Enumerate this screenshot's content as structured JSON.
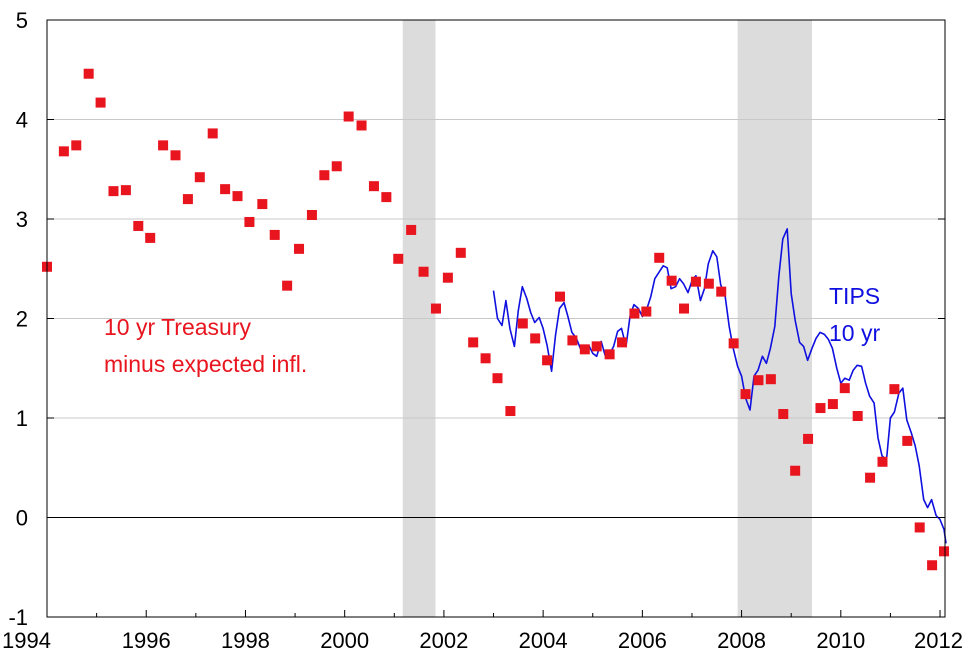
{
  "chart_data": {
    "type": "scatter",
    "xlim": [
      1994,
      2012.1
    ],
    "ylim": [
      -1,
      5
    ],
    "x_ticks": [
      "1994",
      "1996",
      "1998",
      "2000",
      "2002",
      "2004",
      "2006",
      "2008",
      "2010",
      "2012"
    ],
    "y_ticks": [
      "-1",
      "0",
      "1",
      "2",
      "3",
      "4",
      "5"
    ],
    "grid": "horizontal",
    "zero_line": true,
    "recessions": [
      [
        2001.17,
        2001.83
      ],
      [
        2007.92,
        2009.42
      ]
    ],
    "annotations": {
      "treasury_line1": "10 yr Treasury",
      "treasury_line2": "minus expected infl.",
      "tips_line1": "TIPS",
      "tips_line2": "10 yr"
    },
    "colors": {
      "treasury": "#e8141e",
      "tips": "#0f10e0",
      "recession": "#dcdcdc",
      "grid": "#c8c8c8"
    },
    "series": [
      {
        "key": "treasury",
        "style": "markers",
        "points": [
          [
            1994.0,
            2.52
          ],
          [
            1994.34,
            3.68
          ],
          [
            1994.59,
            3.74
          ],
          [
            1994.84,
            4.46
          ],
          [
            1995.08,
            4.17
          ],
          [
            1995.34,
            3.28
          ],
          [
            1995.59,
            3.29
          ],
          [
            1995.84,
            2.93
          ],
          [
            1996.08,
            2.81
          ],
          [
            1996.34,
            3.74
          ],
          [
            1996.59,
            3.64
          ],
          [
            1996.84,
            3.2
          ],
          [
            1997.08,
            3.42
          ],
          [
            1997.34,
            3.86
          ],
          [
            1997.59,
            3.3
          ],
          [
            1997.84,
            3.23
          ],
          [
            1998.08,
            2.97
          ],
          [
            1998.34,
            3.15
          ],
          [
            1998.59,
            2.84
          ],
          [
            1998.84,
            2.33
          ],
          [
            1999.08,
            2.7
          ],
          [
            1999.34,
            3.04
          ],
          [
            1999.59,
            3.44
          ],
          [
            1999.84,
            3.53
          ],
          [
            2000.08,
            4.03
          ],
          [
            2000.34,
            3.94
          ],
          [
            2000.59,
            3.33
          ],
          [
            2000.84,
            3.22
          ],
          [
            2001.08,
            2.6
          ],
          [
            2001.34,
            2.89
          ],
          [
            2001.59,
            2.47
          ],
          [
            2001.84,
            2.1
          ],
          [
            2002.08,
            2.41
          ],
          [
            2002.34,
            2.66
          ],
          [
            2002.59,
            1.76
          ],
          [
            2002.84,
            1.6
          ],
          [
            2003.08,
            1.4
          ],
          [
            2003.34,
            1.07
          ],
          [
            2003.59,
            1.95
          ],
          [
            2003.84,
            1.8
          ],
          [
            2004.08,
            1.58
          ],
          [
            2004.34,
            2.22
          ],
          [
            2004.59,
            1.78
          ],
          [
            2004.84,
            1.69
          ],
          [
            2005.08,
            1.72
          ],
          [
            2005.34,
            1.64
          ],
          [
            2005.59,
            1.76
          ],
          [
            2005.84,
            2.05
          ],
          [
            2006.08,
            2.07
          ],
          [
            2006.34,
            2.61
          ],
          [
            2006.59,
            2.38
          ],
          [
            2006.84,
            2.1
          ],
          [
            2007.08,
            2.37
          ],
          [
            2007.34,
            2.35
          ],
          [
            2007.59,
            2.27
          ],
          [
            2007.84,
            1.75
          ],
          [
            2008.08,
            1.24
          ],
          [
            2008.34,
            1.38
          ],
          [
            2008.59,
            1.39
          ],
          [
            2008.84,
            1.04
          ],
          [
            2009.08,
            0.47
          ],
          [
            2009.34,
            0.79
          ],
          [
            2009.59,
            1.1
          ],
          [
            2009.84,
            1.14
          ],
          [
            2010.08,
            1.3
          ],
          [
            2010.34,
            1.02
          ],
          [
            2010.59,
            0.4
          ],
          [
            2010.84,
            0.56
          ],
          [
            2011.08,
            1.29
          ],
          [
            2011.34,
            0.77
          ],
          [
            2011.59,
            -0.1
          ],
          [
            2011.84,
            -0.48
          ],
          [
            2012.08,
            -0.34
          ]
        ]
      },
      {
        "key": "tips",
        "style": "line",
        "points": [
          [
            2003.0,
            2.28
          ],
          [
            2003.08,
            2.0
          ],
          [
            2003.17,
            1.93
          ],
          [
            2003.25,
            2.18
          ],
          [
            2003.33,
            1.9
          ],
          [
            2003.42,
            1.72
          ],
          [
            2003.5,
            2.08
          ],
          [
            2003.58,
            2.32
          ],
          [
            2003.67,
            2.2
          ],
          [
            2003.75,
            2.06
          ],
          [
            2003.83,
            1.96
          ],
          [
            2003.92,
            2.01
          ],
          [
            2004.0,
            1.9
          ],
          [
            2004.08,
            1.73
          ],
          [
            2004.17,
            1.47
          ],
          [
            2004.25,
            1.83
          ],
          [
            2004.33,
            2.1
          ],
          [
            2004.42,
            2.16
          ],
          [
            2004.5,
            2.02
          ],
          [
            2004.58,
            1.86
          ],
          [
            2004.67,
            1.8
          ],
          [
            2004.75,
            1.7
          ],
          [
            2004.83,
            1.68
          ],
          [
            2004.92,
            1.73
          ],
          [
            2005.0,
            1.65
          ],
          [
            2005.08,
            1.62
          ],
          [
            2005.17,
            1.77
          ],
          [
            2005.25,
            1.63
          ],
          [
            2005.33,
            1.63
          ],
          [
            2005.42,
            1.72
          ],
          [
            2005.5,
            1.87
          ],
          [
            2005.58,
            1.9
          ],
          [
            2005.67,
            1.72
          ],
          [
            2005.75,
            2.02
          ],
          [
            2005.83,
            2.14
          ],
          [
            2005.92,
            2.1
          ],
          [
            2006.0,
            2.02
          ],
          [
            2006.08,
            2.08
          ],
          [
            2006.17,
            2.22
          ],
          [
            2006.25,
            2.4
          ],
          [
            2006.33,
            2.46
          ],
          [
            2006.42,
            2.53
          ],
          [
            2006.5,
            2.51
          ],
          [
            2006.58,
            2.3
          ],
          [
            2006.67,
            2.32
          ],
          [
            2006.75,
            2.4
          ],
          [
            2006.83,
            2.35
          ],
          [
            2006.92,
            2.26
          ],
          [
            2007.0,
            2.38
          ],
          [
            2007.08,
            2.43
          ],
          [
            2007.17,
            2.18
          ],
          [
            2007.25,
            2.3
          ],
          [
            2007.33,
            2.55
          ],
          [
            2007.42,
            2.68
          ],
          [
            2007.5,
            2.62
          ],
          [
            2007.58,
            2.34
          ],
          [
            2007.67,
            2.22
          ],
          [
            2007.75,
            1.92
          ],
          [
            2007.83,
            1.7
          ],
          [
            2007.92,
            1.52
          ],
          [
            2008.0,
            1.42
          ],
          [
            2008.08,
            1.2
          ],
          [
            2008.17,
            1.08
          ],
          [
            2008.25,
            1.42
          ],
          [
            2008.33,
            1.48
          ],
          [
            2008.42,
            1.62
          ],
          [
            2008.5,
            1.55
          ],
          [
            2008.58,
            1.7
          ],
          [
            2008.67,
            1.92
          ],
          [
            2008.75,
            2.42
          ],
          [
            2008.83,
            2.8
          ],
          [
            2008.92,
            2.9
          ],
          [
            2009.0,
            2.25
          ],
          [
            2009.08,
            1.98
          ],
          [
            2009.17,
            1.76
          ],
          [
            2009.25,
            1.72
          ],
          [
            2009.33,
            1.58
          ],
          [
            2009.42,
            1.7
          ],
          [
            2009.5,
            1.8
          ],
          [
            2009.58,
            1.86
          ],
          [
            2009.67,
            1.84
          ],
          [
            2009.75,
            1.79
          ],
          [
            2009.83,
            1.7
          ],
          [
            2009.92,
            1.5
          ],
          [
            2010.0,
            1.35
          ],
          [
            2010.08,
            1.4
          ],
          [
            2010.17,
            1.38
          ],
          [
            2010.25,
            1.48
          ],
          [
            2010.33,
            1.53
          ],
          [
            2010.42,
            1.52
          ],
          [
            2010.5,
            1.35
          ],
          [
            2010.58,
            1.22
          ],
          [
            2010.67,
            1.15
          ],
          [
            2010.75,
            0.8
          ],
          [
            2010.83,
            0.62
          ],
          [
            2010.92,
            0.58
          ],
          [
            2011.0,
            1.0
          ],
          [
            2011.08,
            1.06
          ],
          [
            2011.17,
            1.25
          ],
          [
            2011.25,
            1.3
          ],
          [
            2011.33,
            0.98
          ],
          [
            2011.42,
            0.85
          ],
          [
            2011.5,
            0.72
          ],
          [
            2011.58,
            0.52
          ],
          [
            2011.67,
            0.18
          ],
          [
            2011.75,
            0.1
          ],
          [
            2011.83,
            0.18
          ],
          [
            2011.92,
            0.02
          ],
          [
            2012.0,
            -0.02
          ],
          [
            2012.08,
            -0.12
          ],
          [
            2012.12,
            -0.26
          ]
        ]
      }
    ]
  }
}
